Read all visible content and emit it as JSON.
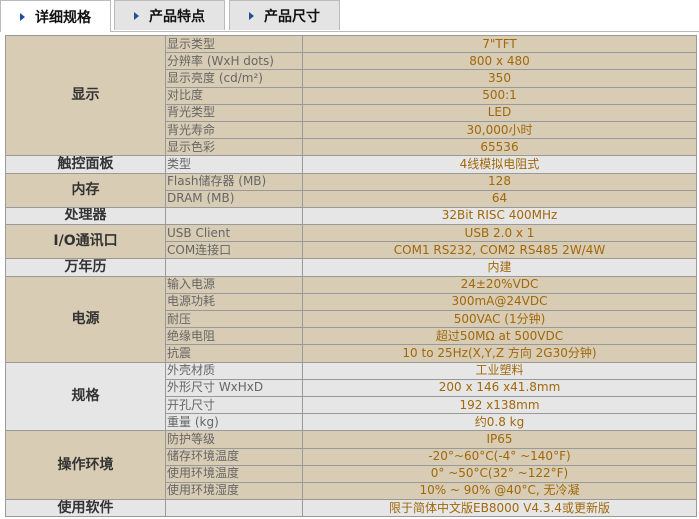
{
  "tabs": [
    {
      "label": "详细规格",
      "active": true
    },
    {
      "label": "产品特点",
      "active": false
    },
    {
      "label": "产品尺寸",
      "active": false
    }
  ],
  "colors": {
    "tan": "#d8ccb4",
    "gray": "#e6e6e6",
    "value_text": "#a0680a",
    "tab_arrow": "#1f4f9a"
  },
  "groups": [
    {
      "name": "显示",
      "rows": [
        [
          "显示类型",
          "7\"TFT"
        ],
        [
          "分辨率 (WxH dots)",
          "800 x 480"
        ],
        [
          "显示亮度 (cd/m²)",
          "350"
        ],
        [
          "对比度",
          "500:1"
        ],
        [
          "背光类型",
          "LED"
        ],
        [
          "背光寿命",
          "30,000小时"
        ],
        [
          "显示色彩",
          "65536"
        ]
      ]
    },
    {
      "name": "触控面板",
      "rows": [
        [
          "类型",
          "4线模拟电阻式"
        ]
      ]
    },
    {
      "name": "内存",
      "rows": [
        [
          "Flash储存器 (MB)",
          "128"
        ],
        [
          "DRAM (MB)",
          "64"
        ]
      ]
    },
    {
      "name": "处理器",
      "rows": [
        [
          "",
          "32Bit RISC 400MHz"
        ]
      ]
    },
    {
      "name": "I/O通讯口",
      "rows": [
        [
          "USB Client",
          "USB 2.0 x 1"
        ],
        [
          "COM连接口",
          "COM1 RS232, COM2 RS485 2W/4W"
        ]
      ]
    },
    {
      "name": "万年历",
      "rows": [
        [
          "",
          "内建"
        ]
      ]
    },
    {
      "name": "电源",
      "rows": [
        [
          "输入电源",
          "24±20%VDC"
        ],
        [
          "电源功耗",
          "300mA@24VDC"
        ],
        [
          "耐压",
          "500VAC (1分钟)"
        ],
        [
          "绝缘电阻",
          "超过50MΩ at 500VDC"
        ],
        [
          "抗震",
          "10 to 25Hz(X,Y,Z 方向 2G30分钟)"
        ]
      ]
    },
    {
      "name": "规格",
      "rows": [
        [
          "外壳材质",
          "工业塑料"
        ],
        [
          "外形尺寸 WxHxD",
          "200 x 146 x41.8mm"
        ],
        [
          "开孔尺寸",
          "192 x138mm"
        ],
        [
          "重量 (kg)",
          "约0.8 kg"
        ]
      ]
    },
    {
      "name": "操作环境",
      "rows": [
        [
          "防护等级",
          "IP65"
        ],
        [
          "储存环境温度",
          "-20°~60°C(-4° ~140°F)"
        ],
        [
          "使用环境温度",
          "0° ~50°C(32° ~122°F)"
        ],
        [
          "使用环境湿度",
          "10% ~ 90% @40°C, 无冷凝"
        ]
      ]
    },
    {
      "name": "使用软件",
      "rows": [
        [
          "",
          "限于简体中文版EB8000 V4.3.4或更新版"
        ]
      ]
    }
  ]
}
